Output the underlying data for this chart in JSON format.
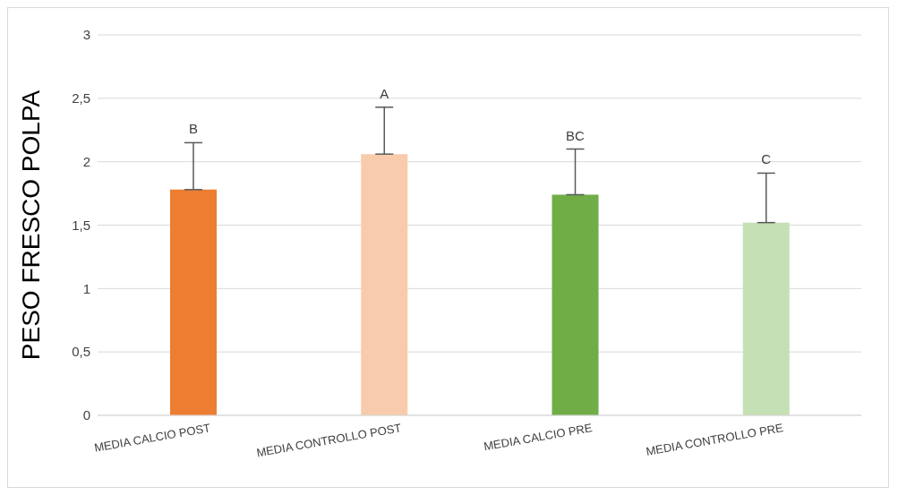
{
  "chart_data": {
    "type": "bar",
    "ylabel": "PESO FRESCO POLPA",
    "categories": [
      "MEDIA CALCIO POST",
      "MEDIA CONTROLLO POST",
      "MEDIA CALCIO PRE",
      "MEDIA CONTROLLO PRE"
    ],
    "values": [
      1.78,
      2.06,
      1.74,
      1.52
    ],
    "colors": [
      "#ed7d31",
      "#f8cbad",
      "#70ad47",
      "#c5e0b4"
    ],
    "errors": [
      [
        1.78,
        2.15
      ],
      [
        2.06,
        2.43
      ],
      [
        1.74,
        2.1
      ],
      [
        1.52,
        1.91
      ]
    ],
    "ylim": [
      0,
      3
    ],
    "yticks": [
      0,
      {
        "value": 0.5,
        "label": "0,5"
      },
      1,
      {
        "value": 1.5,
        "label": "1,5"
      },
      2,
      {
        "value": 2.5,
        "label": "2,5"
      },
      3
    ],
    "grid": "y",
    "legend": false,
    "annotations": [
      "B",
      "A",
      "BC",
      "C"
    ]
  }
}
